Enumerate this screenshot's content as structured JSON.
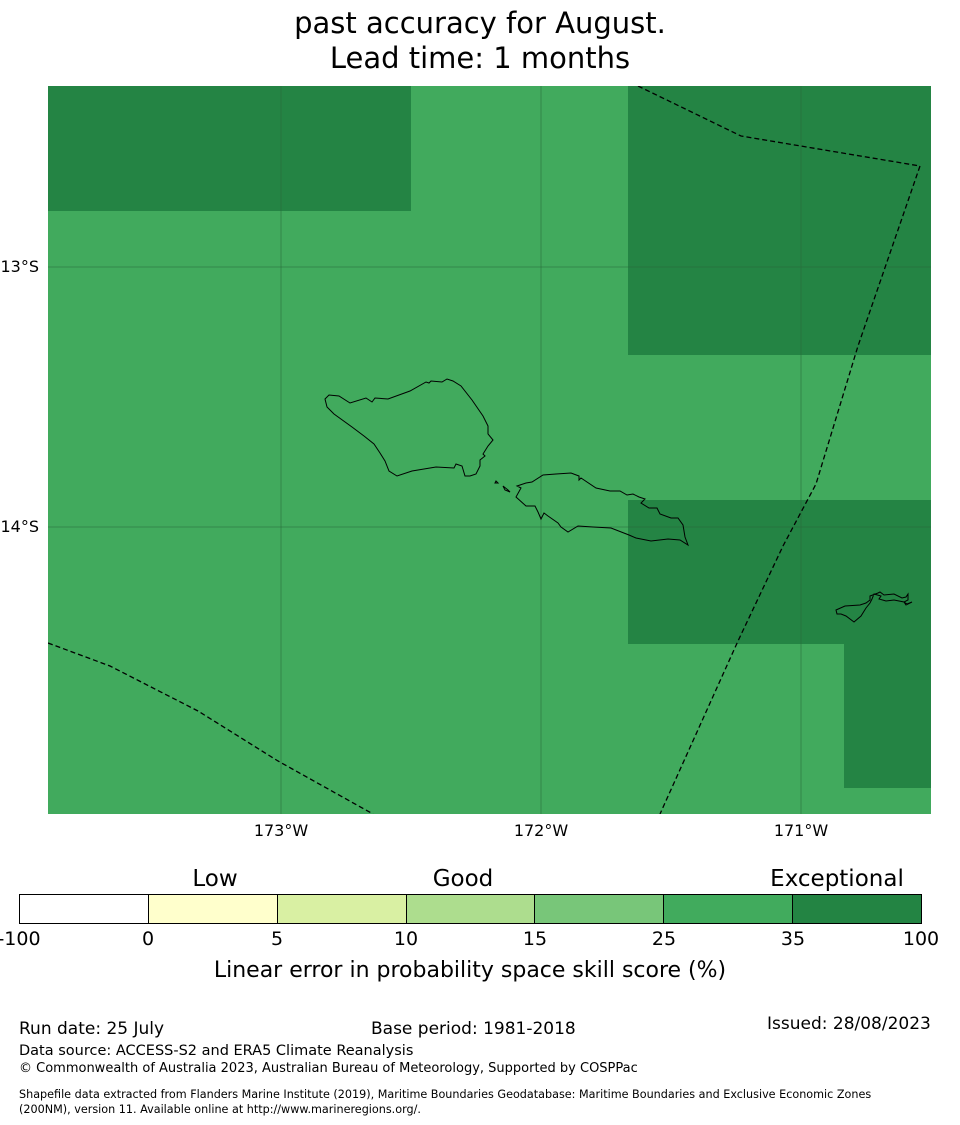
{
  "title": {
    "line1": "past accuracy for August.",
    "line2": "Lead time: 1 months"
  },
  "map": {
    "lat_labels": [
      "13°S",
      "14°S"
    ],
    "lon_labels": [
      "173°W",
      "172°W",
      "171°W"
    ],
    "colors": {
      "ocean": "#41aa5d",
      "exceptional": "#248444",
      "grid": "#2a6a3a",
      "coast": "#000000"
    }
  },
  "legend": {
    "categories": [
      "Low",
      "Good",
      "Exceptional"
    ],
    "ticks": [
      "-100",
      "0",
      "5",
      "10",
      "15",
      "25",
      "35",
      "100"
    ],
    "colors": [
      "#ffffff",
      "#ffffcc",
      "#d9f0a3",
      "#addd8e",
      "#78c679",
      "#41ab5d",
      "#238443"
    ],
    "axis_title": "Linear error in probability space skill score (%)"
  },
  "footer": {
    "run_date": "Run date: 25 July",
    "base_period": "Base period: 1981-2018",
    "issued": "Issued: 28/08/2023",
    "data_source": "Data source: ACCESS-S2 and ERA5 Climate Reanalysis",
    "copyright": "© Commonwealth of Australia 2023, Australian Bureau of Meteorology, Supported by COSPPac",
    "shapefile_line1": "Shapefile data extracted from Flanders Marine Institute (2019), Maritime Boundaries Geodatabase: Maritime Boundaries and Exclusive Economic Zones",
    "shapefile_line2": "(200NM), version 11. Available online at http://www.marineregions.org/."
  }
}
